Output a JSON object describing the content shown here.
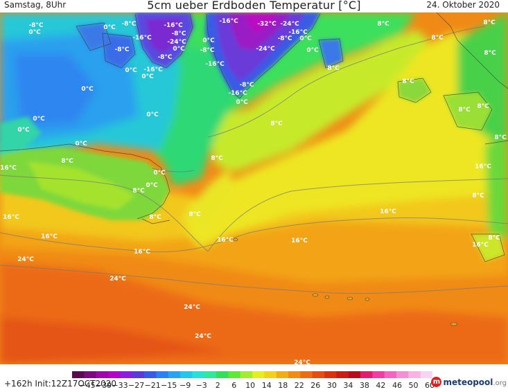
{
  "header": {
    "datetime": "Samstag, 8Uhr",
    "title": "5cm ueber Erdboden Temperatur [°C]",
    "date": "24. Oktober 2020"
  },
  "footer": {
    "run_info": "+162h Init:12Z17OCT2020",
    "logo_main": "meteopool",
    "logo_domain": ".org"
  },
  "colorbar": {
    "ticks": [
      "−45",
      "−39",
      "−33",
      "−27",
      "−21",
      "−15",
      "−9",
      "−3",
      "2",
      "6",
      "10",
      "14",
      "18",
      "22",
      "26",
      "30",
      "34",
      "38",
      "42",
      "46",
      "50",
      "60"
    ],
    "colors": [
      "#5a0a4e",
      "#7a0a7e",
      "#9b0aa8",
      "#b400c8",
      "#8a1ee0",
      "#5a3ad8",
      "#3a5ae6",
      "#2e7ff0",
      "#2aa2f2",
      "#26c6ea",
      "#26e2d4",
      "#30e89a",
      "#34de5a",
      "#5ee838",
      "#a6ec2e",
      "#e6ee22",
      "#f2d01c",
      "#f2ac18",
      "#f08c16",
      "#ec6c14",
      "#e44e12",
      "#d8320e",
      "#c81c14",
      "#b40e1e",
      "#e01e6c",
      "#ee3ea2",
      "#f266c2",
      "#f48ed6",
      "#f6b4e6",
      "#f8d4f2"
    ]
  },
  "map_labels": [
    {
      "text": "-8°C",
      "pos": [
        52,
        12
      ]
    },
    {
      "text": "0°C",
      "pos": [
        158,
        15
      ]
    },
    {
      "text": "-8°C",
      "pos": [
        186,
        10
      ]
    },
    {
      "text": "-16°C",
      "pos": [
        250,
        12
      ]
    },
    {
      "text": "-16°C",
      "pos": [
        330,
        6
      ]
    },
    {
      "text": "-32°C",
      "pos": [
        385,
        10
      ]
    },
    {
      "text": "-24°C",
      "pos": [
        418,
        10
      ]
    },
    {
      "text": "8°C",
      "pos": [
        553,
        10
      ]
    },
    {
      "text": "8°C",
      "pos": [
        706,
        8
      ]
    },
    {
      "text": "0°C",
      "pos": [
        50,
        22
      ]
    },
    {
      "text": "-16°C",
      "pos": [
        205,
        30
      ]
    },
    {
      "text": "-8°C",
      "pos": [
        258,
        24
      ]
    },
    {
      "text": "-16°C",
      "pos": [
        430,
        22
      ]
    },
    {
      "text": "8°C",
      "pos": [
        631,
        30
      ]
    },
    {
      "text": "-24°C",
      "pos": [
        255,
        36
      ]
    },
    {
      "text": "0°C",
      "pos": [
        301,
        34
      ]
    },
    {
      "text": "-8°C",
      "pos": [
        411,
        31
      ]
    },
    {
      "text": "0°C",
      "pos": [
        441,
        31
      ]
    },
    {
      "text": "0°C",
      "pos": [
        258,
        46
      ]
    },
    {
      "text": "-8°C",
      "pos": [
        176,
        47
      ]
    },
    {
      "text": "-8°C",
      "pos": [
        299,
        48
      ]
    },
    {
      "text": "-24°C",
      "pos": [
        383,
        46
      ]
    },
    {
      "text": "0°C",
      "pos": [
        451,
        48
      ]
    },
    {
      "text": "8°C",
      "pos": [
        707,
        52
      ]
    },
    {
      "text": "-8°C",
      "pos": [
        238,
        58
      ]
    },
    {
      "text": "-16°C",
      "pos": [
        310,
        68
      ]
    },
    {
      "text": "8°C",
      "pos": [
        481,
        74
      ]
    },
    {
      "text": "0°C",
      "pos": [
        189,
        77
      ]
    },
    {
      "text": "-16°C",
      "pos": [
        221,
        76
      ]
    },
    {
      "text": "0°C",
      "pos": [
        213,
        86
      ]
    },
    {
      "text": "8°C",
      "pos": [
        589,
        93
      ]
    },
    {
      "text": "-8°C",
      "pos": [
        356,
        98
      ]
    },
    {
      "text": "0°C",
      "pos": [
        126,
        104
      ]
    },
    {
      "text": "-16°C",
      "pos": [
        343,
        110
      ]
    },
    {
      "text": "0°C",
      "pos": [
        349,
        123
      ]
    },
    {
      "text": "8°C",
      "pos": [
        670,
        134
      ]
    },
    {
      "text": "8°C",
      "pos": [
        697,
        129
      ]
    },
    {
      "text": "0°C",
      "pos": [
        220,
        141
      ]
    },
    {
      "text": "0°C",
      "pos": [
        56,
        147
      ]
    },
    {
      "text": "8°C",
      "pos": [
        399,
        154
      ]
    },
    {
      "text": "0°C",
      "pos": [
        34,
        163
      ]
    },
    {
      "text": "8°C",
      "pos": [
        722,
        174
      ]
    },
    {
      "text": "0°C",
      "pos": [
        117,
        183
      ]
    },
    {
      "text": "8°C",
      "pos": [
        313,
        204
      ]
    },
    {
      "text": "8°C",
      "pos": [
        97,
        208
      ]
    },
    {
      "text": "16°C",
      "pos": [
        12,
        218
      ]
    },
    {
      "text": "16°C",
      "pos": [
        697,
        216
      ]
    },
    {
      "text": "0°C",
      "pos": [
        230,
        225
      ]
    },
    {
      "text": "8°C",
      "pos": [
        200,
        251
      ]
    },
    {
      "text": "0°C",
      "pos": [
        219,
        243
      ]
    },
    {
      "text": "8°C",
      "pos": [
        690,
        258
      ]
    },
    {
      "text": "8°C",
      "pos": [
        281,
        285
      ]
    },
    {
      "text": "16°C",
      "pos": [
        560,
        281
      ]
    },
    {
      "text": "8°C",
      "pos": [
        224,
        289
      ]
    },
    {
      "text": "16°C",
      "pos": [
        16,
        289
      ]
    },
    {
      "text": "16°C",
      "pos": [
        71,
        317
      ]
    },
    {
      "text": "16°C",
      "pos": [
        325,
        322
      ]
    },
    {
      "text": "16°C",
      "pos": [
        432,
        323
      ]
    },
    {
      "text": "8°C",
      "pos": [
        713,
        319
      ]
    },
    {
      "text": "16°C",
      "pos": [
        693,
        329
      ]
    },
    {
      "text": "16°C",
      "pos": [
        205,
        339
      ]
    },
    {
      "text": "24°C",
      "pos": [
        37,
        350
      ]
    },
    {
      "text": "24°C",
      "pos": [
        170,
        378
      ]
    },
    {
      "text": "24°C",
      "pos": [
        277,
        419
      ]
    },
    {
      "text": "24°C",
      "pos": [
        293,
        461
      ]
    },
    {
      "text": "24°C",
      "pos": [
        436,
        499
      ]
    }
  ]
}
